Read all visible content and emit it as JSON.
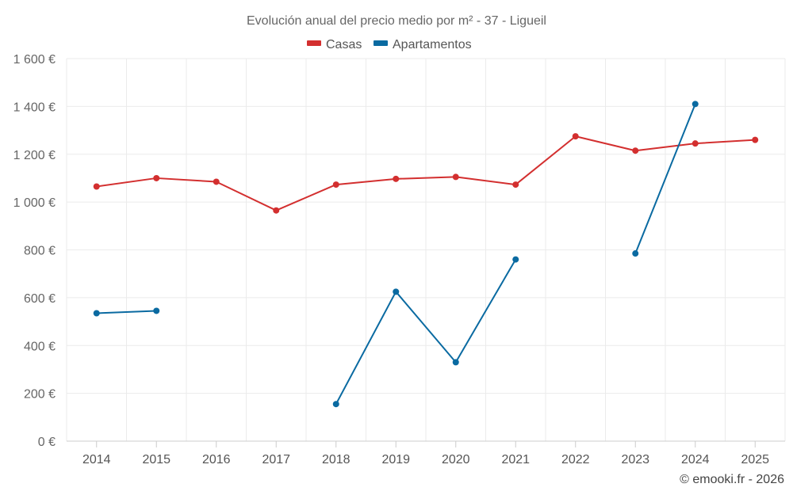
{
  "chart_data": {
    "type": "line",
    "title": "Evolución anual del precio medio por m² - 37 - Ligueil",
    "categories": [
      "2014",
      "2015",
      "2016",
      "2017",
      "2018",
      "2019",
      "2020",
      "2021",
      "2022",
      "2023",
      "2024",
      "2025"
    ],
    "y_ticks": [
      0,
      200,
      400,
      600,
      800,
      1000,
      1200,
      1400,
      1600
    ],
    "y_tick_labels": [
      "0 €",
      "200 €",
      "400 €",
      "600 €",
      "800 €",
      "1 000 €",
      "1 200 €",
      "1 400 €",
      "1 600 €"
    ],
    "ylim": [
      0,
      1600
    ],
    "grid": true,
    "legend_position": "top-center",
    "series": [
      {
        "name": "Casas",
        "color": "#d32f2f",
        "values": [
          1065,
          1100,
          1085,
          965,
          1073,
          1097,
          1105,
          1073,
          1275,
          1215,
          1245,
          1260
        ]
      },
      {
        "name": "Apartamentos",
        "color": "#0a6aa1",
        "values": [
          535,
          545,
          null,
          null,
          155,
          625,
          330,
          760,
          null,
          785,
          1410,
          null
        ]
      }
    ]
  },
  "credit": "© emooki.fr - 2026"
}
